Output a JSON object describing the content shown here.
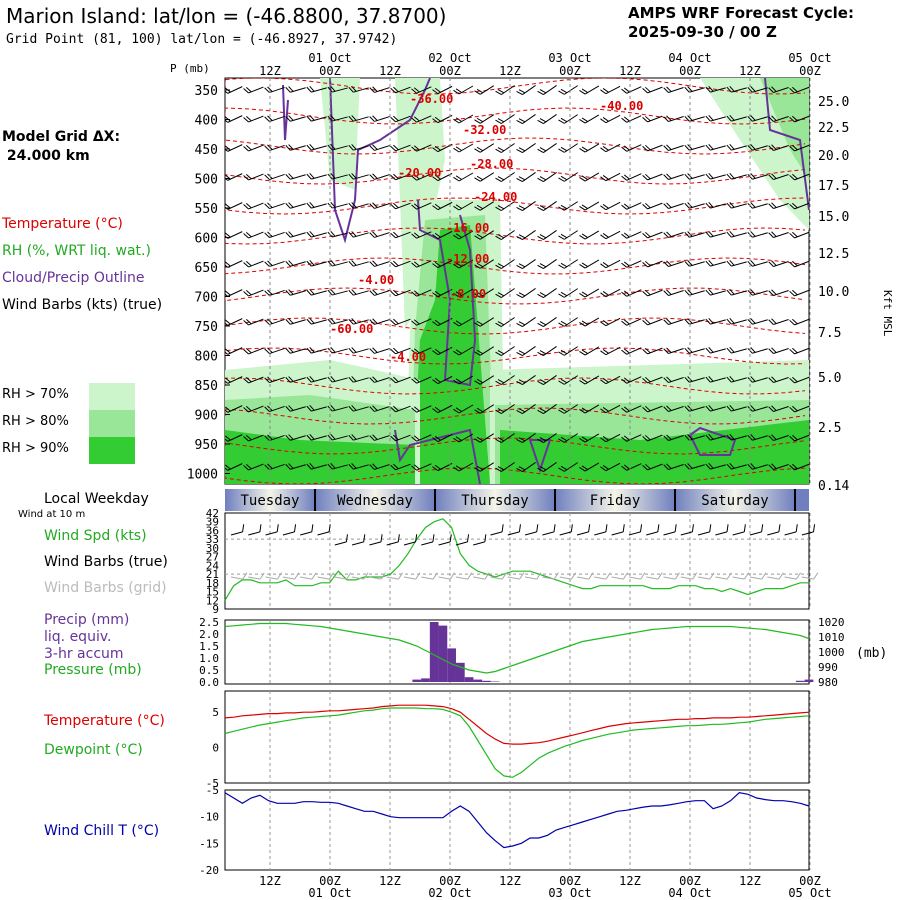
{
  "header": {
    "title": "Marion Island:  lat/lon = (-46.8800, 37.8700)",
    "subtitle": "Grid Point (81, 100) lat/lon = (-46.8927, 37.9742)",
    "cycle_line1": "AMPS WRF Forecast Cycle:",
    "cycle_line2": "2025-09-30 / 00  Z",
    "model_grid_label": "Model Grid ΔX:",
    "model_grid_value": " 24.000 km"
  },
  "legend": {
    "temperature": "Temperature (°C)",
    "rh": "RH (%, WRT liq. wat.)",
    "cloud": "Cloud/Precip Outline",
    "wind": "Wind Barbs (kts) (true)",
    "rh70": "RH > 70%",
    "rh80": "RH > 80%",
    "rh90": "RH > 90%"
  },
  "colors": {
    "temperature": "#dd0000",
    "rh": "#22bb22",
    "cloud": "#663399",
    "rh70": "#ccf5cc",
    "rh80": "#99e699",
    "rh90": "#33cc33",
    "wind_chill": "#0000aa",
    "dewpoint": "#22bb22",
    "band": "#7080b8"
  },
  "time_axis": {
    "top_dates": [
      "01 Oct",
      "02 Oct",
      "03 Oct",
      "04 Oct",
      "05 Oct"
    ],
    "top_hours": [
      "12Z",
      "00Z",
      "12Z",
      "00Z",
      "12Z",
      "00Z",
      "12Z",
      "00Z",
      "12Z",
      "00Z"
    ],
    "bottom_hours": [
      "12Z",
      "00Z",
      "12Z",
      "00Z",
      "12Z",
      "00Z",
      "12Z",
      "00Z",
      "12Z",
      "00Z"
    ],
    "bottom_dates": [
      "01 Oct",
      "02 Oct",
      "03 Oct",
      "04 Oct",
      "05 Oct"
    ],
    "weekdays": [
      "Tuesday",
      "Wednesday",
      "Thursday",
      "Friday",
      "Saturday"
    ]
  },
  "chart_data": [
    {
      "type": "heatmap",
      "name": "cross-section",
      "ylabel": "P (mb)",
      "ylabel_right": "Kft MSL",
      "pressure_ticks": [
        "350",
        "400",
        "450",
        "500",
        "550",
        "600",
        "650",
        "700",
        "750",
        "800",
        "850",
        "900",
        "950",
        "1000"
      ],
      "height_ticks": [
        "25.0",
        "22.5",
        "20.0",
        "17.5",
        "15.0",
        "12.5",
        "10.0",
        "7.5",
        "5.0",
        "2.5",
        "0.14"
      ],
      "temperature_labels": [
        "-36.00",
        "-40.00",
        "-32.00",
        "-28.00",
        "-20.00",
        "-24.00",
        "-16.00",
        "-12.00",
        "-8.00",
        "-4.00",
        "-60.00",
        "-4.00"
      ]
    },
    {
      "type": "line",
      "name": "wind",
      "header": "Local Weekday",
      "subheader": "Wind at 10 m",
      "labels": [
        "Wind Spd (kts)",
        "Wind Barbs (true)",
        "Wind Barbs (grid)"
      ],
      "y_ticks": [
        "42",
        "39",
        "36",
        "33",
        "30",
        "27",
        "24",
        "21",
        "18",
        "15",
        "12",
        "9"
      ],
      "ylim": [
        9,
        42
      ],
      "speed": [
        12,
        17,
        19,
        19,
        18,
        18,
        18,
        19,
        17,
        17,
        17,
        18,
        18,
        22,
        19,
        19,
        20,
        20,
        20,
        21,
        24,
        28,
        33,
        37,
        39,
        40,
        37,
        28,
        24,
        22,
        21,
        20,
        21,
        22,
        22,
        22,
        21,
        20,
        19,
        18,
        17,
        16,
        16,
        17,
        17,
        17,
        17,
        17,
        17,
        16,
        16,
        16,
        17,
        17,
        17,
        16,
        16,
        15,
        16,
        15,
        14,
        15,
        16,
        16,
        16,
        17,
        18,
        18
      ]
    },
    {
      "type": "bar",
      "name": "precip",
      "labels": [
        "Precip (mm)",
        "liq. equiv.",
        "3-hr accum",
        "Pressure (mb)"
      ],
      "y_ticks": [
        "2.5",
        "2.0",
        "1.5",
        "1.0",
        "0.5",
        "0.0"
      ],
      "ylim": [
        0,
        2.5
      ],
      "right_ticks": [
        "1020",
        "1010",
        "1000",
        "990",
        "980"
      ],
      "right_label": "(mb)",
      "right_ylim": [
        980,
        1020
      ],
      "precip": [
        0,
        0,
        0,
        0,
        0,
        0,
        0,
        0,
        0,
        0,
        0,
        0,
        0,
        0,
        0,
        0,
        0,
        0,
        0,
        0,
        0,
        0,
        0.1,
        0.15,
        2.5,
        2.35,
        1.4,
        0.8,
        0.2,
        0.1,
        0.05,
        0.02,
        0,
        0,
        0,
        0,
        0,
        0,
        0,
        0,
        0,
        0,
        0,
        0,
        0,
        0,
        0,
        0,
        0,
        0,
        0,
        0,
        0,
        0,
        0,
        0,
        0,
        0,
        0,
        0,
        0,
        0,
        0,
        0,
        0,
        0,
        0.05,
        0.1
      ],
      "pressure": [
        1017,
        1017.5,
        1018,
        1018.5,
        1019,
        1019,
        1019,
        1019,
        1018.5,
        1018,
        1017.5,
        1017,
        1016,
        1015,
        1014,
        1013,
        1012,
        1011,
        1010,
        1009,
        1008,
        1006,
        1004,
        1001,
        998,
        995,
        992,
        990,
        988,
        987,
        986,
        987,
        989,
        991,
        993,
        995,
        997,
        999,
        1001,
        1003,
        1005,
        1007,
        1008,
        1009,
        1010,
        1011,
        1012,
        1013,
        1014,
        1015,
        1015.5,
        1016,
        1016.5,
        1017,
        1017,
        1017,
        1017,
        1017,
        1017,
        1016.5,
        1016,
        1015.5,
        1015,
        1014,
        1013,
        1012,
        1011,
        1009
      ]
    },
    {
      "type": "line",
      "name": "temperature",
      "labels": [
        "Temperature (°C)",
        "Dewpoint (°C)"
      ],
      "y_ticks": [
        "5",
        "0",
        "-5"
      ],
      "ylim": [
        -5,
        8
      ],
      "temperature": [
        4.2,
        4.3,
        4.5,
        4.6,
        4.7,
        4.8,
        4.8,
        4.9,
        4.9,
        5.0,
        5.0,
        5.1,
        5.2,
        5.2,
        5.3,
        5.4,
        5.5,
        5.6,
        5.8,
        5.9,
        6.0,
        6.0,
        6.0,
        6.0,
        5.9,
        5.8,
        5.5,
        5.0,
        4.0,
        3.0,
        2.0,
        1.2,
        0.6,
        0.5,
        0.5,
        0.6,
        0.7,
        0.9,
        1.2,
        1.5,
        1.8,
        2.1,
        2.4,
        2.7,
        3.0,
        3.2,
        3.4,
        3.5,
        3.6,
        3.7,
        3.8,
        3.9,
        4.0,
        4.0,
        4.1,
        4.1,
        4.2,
        4.2,
        4.2,
        4.3,
        4.3,
        4.4,
        4.5,
        4.6,
        4.7,
        4.8,
        4.9,
        5.0
      ],
      "dewpoint": [
        2.0,
        2.3,
        2.6,
        2.9,
        3.2,
        3.4,
        3.6,
        3.8,
        4.0,
        4.2,
        4.3,
        4.4,
        4.5,
        4.6,
        4.8,
        5.0,
        5.2,
        5.3,
        5.5,
        5.6,
        5.6,
        5.6,
        5.6,
        5.5,
        5.5,
        5.4,
        5.0,
        4.5,
        3.0,
        1.0,
        -1.0,
        -3.0,
        -4.0,
        -4.2,
        -3.5,
        -2.5,
        -1.5,
        -0.8,
        -0.3,
        0.2,
        0.6,
        1.0,
        1.3,
        1.6,
        1.9,
        2.1,
        2.3,
        2.5,
        2.6,
        2.7,
        2.8,
        2.9,
        3.0,
        3.1,
        3.1,
        3.2,
        3.3,
        3.3,
        3.4,
        3.5,
        3.6,
        3.8,
        4.0,
        4.1,
        4.2,
        4.3,
        4.4,
        4.5
      ]
    },
    {
      "type": "line",
      "name": "windchill",
      "labels": [
        "Wind Chill T (°C)"
      ],
      "y_ticks": [
        "-5",
        "-10",
        "-15",
        "-20"
      ],
      "ylim": [
        -20,
        -5
      ],
      "wind_chill": [
        -5.5,
        -6.5,
        -7.5,
        -6.5,
        -6.0,
        -7.0,
        -7.5,
        -7.5,
        -7.5,
        -7.2,
        -7.2,
        -7.3,
        -7.3,
        -7.5,
        -8.0,
        -8.5,
        -9.0,
        -9.0,
        -9.5,
        -10.0,
        -10.2,
        -10.2,
        -10.2,
        -10.2,
        -10.2,
        -10.2,
        -9.0,
        -8.0,
        -9.0,
        -11.0,
        -13.0,
        -14.5,
        -15.8,
        -15.5,
        -15.0,
        -14.0,
        -14.0,
        -13.5,
        -12.5,
        -12.0,
        -11.5,
        -11.0,
        -10.5,
        -10.0,
        -9.5,
        -9.0,
        -8.8,
        -8.5,
        -8.2,
        -8.0,
        -8.0,
        -7.8,
        -7.5,
        -7.2,
        -7.0,
        -7.0,
        -8.5,
        -8.0,
        -7.0,
        -5.5,
        -5.8,
        -6.5,
        -6.8,
        -7.0,
        -7.0,
        -7.2,
        -7.5,
        -8.0
      ]
    }
  ]
}
